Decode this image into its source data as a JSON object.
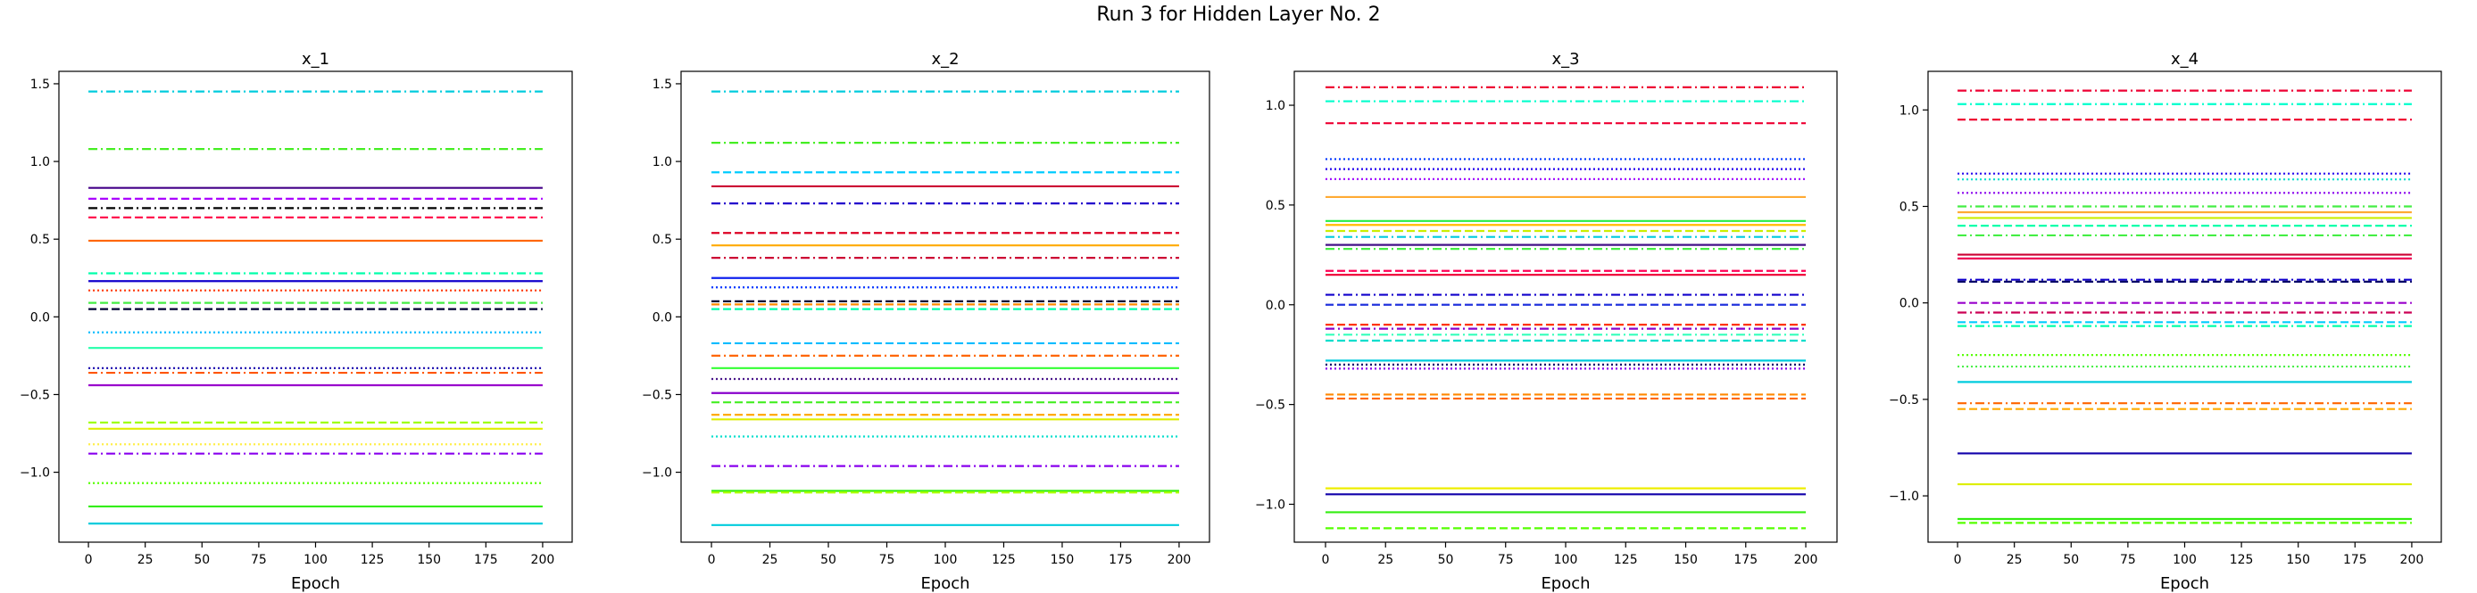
{
  "figure": {
    "title": "Run 3 for Hidden Layer No. 2"
  },
  "chart_data": [
    {
      "type": "line",
      "title": "x_1",
      "xlabel": "Epoch",
      "ylabel": "",
      "xlim": [
        -13,
        213
      ],
      "ylim": [
        -1.45,
        1.58
      ],
      "x": [
        0,
        200
      ],
      "xticks": [
        0,
        25,
        50,
        75,
        100,
        125,
        150,
        175,
        200
      ],
      "yticks": [
        -1.0,
        -0.5,
        0.0,
        0.5,
        1.0,
        1.5
      ],
      "ytick_labels": [
        "−1.0",
        "−0.5",
        "0.0",
        "0.5",
        "1.0",
        "1.5"
      ],
      "grid": false,
      "series": [
        {
          "y": 1.45,
          "color": "#00ccdd",
          "dash": "dashdot"
        },
        {
          "y": 1.08,
          "color": "#44ee22",
          "dash": "dashdot"
        },
        {
          "y": 0.83,
          "color": "#440088",
          "dash": "solid"
        },
        {
          "y": 0.76,
          "color": "#aa00ff",
          "dash": "dashed"
        },
        {
          "y": 0.7,
          "color": "#000000",
          "dash": "dashdot"
        },
        {
          "y": 0.64,
          "color": "#ff0044",
          "dash": "dashed"
        },
        {
          "y": 0.49,
          "color": "#ff6600",
          "dash": "solid"
        },
        {
          "y": 0.28,
          "color": "#00ffaa",
          "dash": "dashdot"
        },
        {
          "y": 0.23,
          "color": "#1100cc",
          "dash": "solid"
        },
        {
          "y": 0.17,
          "color": "#ff3300",
          "dash": "dotted"
        },
        {
          "y": 0.09,
          "color": "#44ee44",
          "dash": "dashed"
        },
        {
          "y": 0.05,
          "color": "#000033",
          "dash": "dashed"
        },
        {
          "y": -0.1,
          "color": "#00bbff",
          "dash": "dotted"
        },
        {
          "y": -0.2,
          "color": "#22ffaa",
          "dash": "solid"
        },
        {
          "y": -0.33,
          "color": "#1100aa",
          "dash": "dotted"
        },
        {
          "y": -0.36,
          "color": "#ff5500",
          "dash": "dashdot"
        },
        {
          "y": -0.44,
          "color": "#9900cc",
          "dash": "solid"
        },
        {
          "y": -0.68,
          "color": "#99ff00",
          "dash": "dashed"
        },
        {
          "y": -0.72,
          "color": "#ddee00",
          "dash": "solid"
        },
        {
          "y": -0.82,
          "color": "#ffee44",
          "dash": "dotted"
        },
        {
          "y": -0.88,
          "color": "#8800ee",
          "dash": "dashdot"
        },
        {
          "y": -1.07,
          "color": "#55ff00",
          "dash": "dotted"
        },
        {
          "y": -1.22,
          "color": "#33ee11",
          "dash": "solid"
        },
        {
          "y": -1.33,
          "color": "#00ccdd",
          "dash": "solid"
        }
      ]
    },
    {
      "type": "line",
      "title": "x_2",
      "xlabel": "Epoch",
      "ylabel": "",
      "xlim": [
        -13,
        213
      ],
      "ylim": [
        -1.45,
        1.58
      ],
      "x": [
        0,
        200
      ],
      "xticks": [
        0,
        25,
        50,
        75,
        100,
        125,
        150,
        175,
        200
      ],
      "yticks": [
        -1.0,
        -0.5,
        0.0,
        0.5,
        1.0,
        1.5
      ],
      "ytick_labels": [
        "−1.0",
        "−0.5",
        "0.0",
        "0.5",
        "1.0",
        "1.5"
      ],
      "grid": false,
      "series": [
        {
          "y": 1.45,
          "color": "#00ccdd",
          "dash": "dashdot"
        },
        {
          "y": 1.12,
          "color": "#44ee22",
          "dash": "dashdot"
        },
        {
          "y": 0.93,
          "color": "#00ccff",
          "dash": "dashed"
        },
        {
          "y": 0.84,
          "color": "#cc0033",
          "dash": "solid"
        },
        {
          "y": 0.73,
          "color": "#2200cc",
          "dash": "dashdot"
        },
        {
          "y": 0.54,
          "color": "#dd0022",
          "dash": "dashed"
        },
        {
          "y": 0.46,
          "color": "#ffaa00",
          "dash": "solid"
        },
        {
          "y": 0.38,
          "color": "#cc0033",
          "dash": "dashdot"
        },
        {
          "y": 0.25,
          "color": "#1122ee",
          "dash": "solid"
        },
        {
          "y": 0.19,
          "color": "#0033ff",
          "dash": "dotted"
        },
        {
          "y": 0.1,
          "color": "#000033",
          "dash": "dashed"
        },
        {
          "y": 0.08,
          "color": "#ff8800",
          "dash": "dashed"
        },
        {
          "y": 0.05,
          "color": "#00ffaa",
          "dash": "dashed"
        },
        {
          "y": -0.17,
          "color": "#00bbff",
          "dash": "dashed"
        },
        {
          "y": -0.25,
          "color": "#ff6600",
          "dash": "dashdot"
        },
        {
          "y": -0.33,
          "color": "#33ff33",
          "dash": "solid"
        },
        {
          "y": -0.4,
          "color": "#441188",
          "dash": "dotted"
        },
        {
          "y": -0.49,
          "color": "#8800cc",
          "dash": "solid"
        },
        {
          "y": -0.55,
          "color": "#44ee22",
          "dash": "dashed"
        },
        {
          "y": -0.63,
          "color": "#ffaa00",
          "dash": "dashed"
        },
        {
          "y": -0.66,
          "color": "#ddee00",
          "dash": "solid"
        },
        {
          "y": -0.77,
          "color": "#00ddcc",
          "dash": "dotted"
        },
        {
          "y": -0.96,
          "color": "#8800ee",
          "dash": "dashdot"
        },
        {
          "y": -1.12,
          "color": "#33ee11",
          "dash": "solid"
        },
        {
          "y": -1.13,
          "color": "#aaff00",
          "dash": "dashed"
        },
        {
          "y": -1.34,
          "color": "#00ccdd",
          "dash": "solid"
        }
      ]
    },
    {
      "type": "line",
      "title": "x_3",
      "xlabel": "Epoch",
      "ylabel": "",
      "xlim": [
        -13,
        213
      ],
      "ylim": [
        -1.19,
        1.17
      ],
      "x": [
        0,
        200
      ],
      "xticks": [
        0,
        25,
        50,
        75,
        100,
        125,
        150,
        175,
        200
      ],
      "yticks": [
        -1.0,
        -0.5,
        0.0,
        0.5,
        1.0
      ],
      "ytick_labels": [
        "−1.0",
        "−0.5",
        "0.0",
        "0.5",
        "1.0"
      ],
      "grid": false,
      "series": [
        {
          "y": 1.09,
          "color": "#ee0033",
          "dash": "dashdot"
        },
        {
          "y": 1.02,
          "color": "#00ffcc",
          "dash": "dashdot"
        },
        {
          "y": 0.91,
          "color": "#ee0033",
          "dash": "dashed"
        },
        {
          "y": 0.73,
          "color": "#0033ff",
          "dash": "dotted"
        },
        {
          "y": 0.68,
          "color": "#2200ee",
          "dash": "dotted"
        },
        {
          "y": 0.63,
          "color": "#9900ff",
          "dash": "dotted"
        },
        {
          "y": 0.54,
          "color": "#ffaa33",
          "dash": "solid"
        },
        {
          "y": 0.42,
          "color": "#22ee44",
          "dash": "solid"
        },
        {
          "y": 0.4,
          "color": "#ffbb00",
          "dash": "solid"
        },
        {
          "y": 0.37,
          "color": "#ccee00",
          "dash": "dashed"
        },
        {
          "y": 0.34,
          "color": "#00ccdd",
          "dash": "dashdot"
        },
        {
          "y": 0.28,
          "color": "#44ee44",
          "dash": "dashdot"
        },
        {
          "y": 0.3,
          "color": "#441188",
          "dash": "solid"
        },
        {
          "y": 0.17,
          "color": "#ff0055",
          "dash": "dashed"
        },
        {
          "y": 0.15,
          "color": "#ee0033",
          "dash": "solid"
        },
        {
          "y": 0.05,
          "color": "#1100cc",
          "dash": "dashdot"
        },
        {
          "y": 0.0,
          "color": "#2233dd",
          "dash": "dashed"
        },
        {
          "y": -0.1,
          "color": "#ff3300",
          "dash": "dashed"
        },
        {
          "y": -0.12,
          "color": "#8800cc",
          "dash": "dashdot"
        },
        {
          "y": -0.15,
          "color": "#33ffbb",
          "dash": "dashdot"
        },
        {
          "y": -0.18,
          "color": "#00ddcc",
          "dash": "dashed"
        },
        {
          "y": -0.28,
          "color": "#00ccdd",
          "dash": "solid"
        },
        {
          "y": -0.3,
          "color": "#000066",
          "dash": "dotted"
        },
        {
          "y": -0.32,
          "color": "#8800ee",
          "dash": "dotted"
        },
        {
          "y": -0.45,
          "color": "#ff8800",
          "dash": "dashed"
        },
        {
          "y": -0.47,
          "color": "#ff6600",
          "dash": "dashed"
        },
        {
          "y": -0.92,
          "color": "#eeee00",
          "dash": "solid"
        },
        {
          "y": -0.95,
          "color": "#1100aa",
          "dash": "solid"
        },
        {
          "y": -1.04,
          "color": "#33ee11",
          "dash": "solid"
        },
        {
          "y": -1.12,
          "color": "#55ff00",
          "dash": "dashed"
        }
      ]
    },
    {
      "type": "line",
      "title": "x_4",
      "xlabel": "Epoch",
      "ylabel": "",
      "xlim": [
        -13,
        213
      ],
      "ylim": [
        -1.24,
        1.2
      ],
      "x": [
        0,
        200
      ],
      "xticks": [
        0,
        25,
        50,
        75,
        100,
        125,
        150,
        175,
        200
      ],
      "yticks": [
        -1.0,
        -0.5,
        0.0,
        0.5,
        1.0
      ],
      "ytick_labels": [
        "−1.0",
        "−0.5",
        "0.0",
        "0.5",
        "1.0"
      ],
      "grid": false,
      "series": [
        {
          "y": 1.1,
          "color": "#ee0033",
          "dash": "dashdot"
        },
        {
          "y": 1.03,
          "color": "#00ffcc",
          "dash": "dashdot"
        },
        {
          "y": 0.95,
          "color": "#ee0033",
          "dash": "dashed"
        },
        {
          "y": 0.67,
          "color": "#2200ee",
          "dash": "dotted"
        },
        {
          "y": 0.64,
          "color": "#00ddcc",
          "dash": "dotted"
        },
        {
          "y": 0.57,
          "color": "#8800ee",
          "dash": "dotted"
        },
        {
          "y": 0.5,
          "color": "#44ee44",
          "dash": "dashdot"
        },
        {
          "y": 0.47,
          "color": "#ffaa33",
          "dash": "solid"
        },
        {
          "y": 0.44,
          "color": "#ccee00",
          "dash": "solid"
        },
        {
          "y": 0.4,
          "color": "#00ffaa",
          "dash": "dashed"
        },
        {
          "y": 0.35,
          "color": "#44ee44",
          "dash": "dashdot"
        },
        {
          "y": 0.25,
          "color": "#cc0033",
          "dash": "solid"
        },
        {
          "y": 0.23,
          "color": "#ee0055",
          "dash": "solid"
        },
        {
          "y": 0.12,
          "color": "#1100cc",
          "dash": "dashdot"
        },
        {
          "y": 0.11,
          "color": "#000066",
          "dash": "dashed"
        },
        {
          "y": 0.0,
          "color": "#9900cc",
          "dash": "dashed"
        },
        {
          "y": -0.05,
          "color": "#cc0055",
          "dash": "dashdot"
        },
        {
          "y": -0.1,
          "color": "#00ccff",
          "dash": "dashed"
        },
        {
          "y": -0.12,
          "color": "#00ffaa",
          "dash": "dashdot"
        },
        {
          "y": -0.27,
          "color": "#55ff00",
          "dash": "dotted"
        },
        {
          "y": -0.33,
          "color": "#44ee44",
          "dash": "dotted"
        },
        {
          "y": -0.41,
          "color": "#00ccdd",
          "dash": "solid"
        },
        {
          "y": -0.52,
          "color": "#ff6600",
          "dash": "dashdot"
        },
        {
          "y": -0.55,
          "color": "#ffaa00",
          "dash": "dashed"
        },
        {
          "y": -0.78,
          "color": "#1100aa",
          "dash": "solid"
        },
        {
          "y": -0.94,
          "color": "#ddee00",
          "dash": "solid"
        },
        {
          "y": -1.12,
          "color": "#33ee11",
          "dash": "solid"
        },
        {
          "y": -1.14,
          "color": "#55ff00",
          "dash": "dashed"
        }
      ]
    }
  ]
}
